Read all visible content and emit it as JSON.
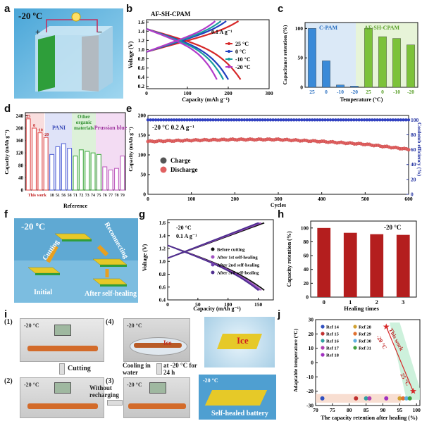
{
  "panel_labels": {
    "a": "a",
    "b": "b",
    "c": "c",
    "d": "d",
    "e": "e",
    "f": "f",
    "g": "g",
    "h": "h",
    "i": "i",
    "j": "j"
  },
  "panel_a": {
    "temperature": "-20 ºC",
    "plus": "+",
    "minus": "−"
  },
  "panel_b": {
    "title": "AF-SH-CPAM",
    "rate": "0.1 A g⁻¹",
    "xlabel": "Capacity (mAh g⁻¹)",
    "ylabel": "Voltage (V)",
    "xticks": [
      "0",
      "100",
      "200",
      "300"
    ],
    "yticks": [
      "0.2",
      "0.4",
      "0.6",
      "0.8",
      "1.0",
      "1.2",
      "1.4",
      "1.6"
    ],
    "legend": [
      {
        "label": "25 °C",
        "color": "#d62728"
      },
      {
        "label": "0 °C",
        "color": "#1f3fbf"
      },
      {
        "label": "-10 °C",
        "color": "#1a9e9e"
      },
      {
        "label": "-20 °C",
        "color": "#b23ac9"
      }
    ]
  },
  "panel_c": {
    "ylabel": "Capacitance retention (%)",
    "xlabel": "Temperature (°C)",
    "group1": "C-PAM",
    "group2": "AF-SH-CPAM",
    "categories": [
      "25",
      "0",
      "-10",
      "-20",
      "25",
      "0",
      "-10",
      "-20"
    ],
    "yticks": [
      "0",
      "50",
      "100"
    ]
  },
  "panel_d": {
    "ylabel": "Capacity (mAh g⁻¹)",
    "xlabel": "Reference",
    "groups": [
      "PANI",
      "Other organic materials",
      "Prussian blue"
    ],
    "annot": [
      "25",
      "0",
      "-10",
      "-20"
    ],
    "xticks": [
      "This work",
      "18",
      "51",
      "56",
      "58",
      "71",
      "72",
      "73",
      "74",
      "75",
      "76",
      "77",
      "78",
      "79"
    ],
    "yticks": [
      "0",
      "40",
      "80",
      "120",
      "160",
      "200",
      "240"
    ]
  },
  "panel_e": {
    "annot": "-20 °C   0.2 A g⁻¹",
    "xlabel": "Cycles",
    "ylabel_left": "Capacity (mAh g⁻¹)",
    "ylabel_right": "Coulomb efficiency (%)",
    "legend": [
      "Charge",
      "Discharge"
    ],
    "xticks": [
      "0",
      "100",
      "200",
      "300",
      "400",
      "500",
      "600"
    ],
    "yticks_left": [
      "0",
      "50",
      "100",
      "150",
      "200"
    ],
    "yticks_right": [
      "0",
      "20",
      "40",
      "60",
      "80",
      "100"
    ]
  },
  "panel_f": {
    "temperature": "-20 ºC",
    "cutting": "Cutting",
    "reconnecting": "Reconnecting",
    "initial": "Initial",
    "after": "After self-healing"
  },
  "panel_g": {
    "annot1": "-20 °C",
    "annot2": "0.1 A g⁻¹",
    "xlabel": "Capacity (mAh g⁻¹)",
    "ylabel": "Voltage (V)",
    "legend": [
      "Before cutting",
      "After 1st self-healing",
      "After 2nd self-healing",
      "After 3rd self-healing"
    ],
    "xticks": [
      "0",
      "50",
      "100",
      "150"
    ],
    "yticks": [
      "0.4",
      "0.6",
      "0.8",
      "1.0",
      "1.2",
      "1.4",
      "1.6"
    ]
  },
  "panel_h": {
    "annot": "-20 °C",
    "xlabel": "Healing times",
    "ylabel": "Capacity retention (%)",
    "xticks": [
      "0",
      "1",
      "2",
      "3"
    ],
    "yticks": [
      "0",
      "20",
      "40",
      "60",
      "80",
      "100"
    ]
  },
  "panel_i": {
    "step1": "(1)",
    "step2": "(2)",
    "step3": "(3)",
    "step4": "(4)",
    "cutting": "Cutting",
    "without": "Without recharging",
    "cooling": "Cooling in water",
    "at": "at -20 °C for 24 h",
    "temp": "-20 °C",
    "ice": "Ice",
    "battery": "Self-healed battery"
  },
  "panel_j": {
    "ylabel": "Adaptable temperature (°C)",
    "xlabel": "The capacity retention after healing (%)",
    "legend": [
      "Ref 14",
      "Ref 15",
      "Ref 16",
      "Ref 17",
      "Ref 18",
      "Ref 28",
      "Ref 29",
      "Ref 30",
      "Ref 31"
    ],
    "this_work": "This work",
    "t1": "-20 °C",
    "t2": "25 °C",
    "xticks": [
      "70",
      "75",
      "80",
      "85",
      "90",
      "95",
      "100"
    ],
    "yticks": [
      "-30",
      "-20",
      "-10",
      "0",
      "10",
      "20",
      "30"
    ]
  },
  "chart_data": [
    {
      "panel": "b",
      "type": "line",
      "title": "AF-SH-CPAM",
      "xlabel": "Capacity (mAh g⁻¹)",
      "ylabel": "Voltage (V)",
      "xlim": [
        0,
        300
      ],
      "ylim": [
        0.15,
        1.65
      ],
      "series": [
        {
          "name": "25 °C",
          "charge_cap_max": 225,
          "discharge_cap_max": 230,
          "color": "#d62728"
        },
        {
          "name": "0 °C",
          "charge_cap_max": 195,
          "discharge_cap_max": 200,
          "color": "#1f3fbf"
        },
        {
          "name": "-10 °C",
          "charge_cap_max": 182,
          "discharge_cap_max": 188,
          "color": "#1a9e9e"
        },
        {
          "name": "-20 °C",
          "charge_cap_max": 168,
          "discharge_cap_max": 172,
          "color": "#b23ac9"
        }
      ]
    },
    {
      "panel": "c",
      "type": "bar",
      "xlabel": "Temperature (°C)",
      "ylabel": "Capacitance retention (%)",
      "ylim": [
        0,
        110
      ],
      "categories": [
        "25",
        "0",
        "-10",
        "-20",
        "25",
        "0",
        "-10",
        "-20"
      ],
      "values": [
        100,
        45,
        4,
        2,
        100,
        86,
        83,
        72
      ],
      "colors": [
        "#3a8ad8",
        "#3a8ad8",
        "#3a8ad8",
        "#3a8ad8",
        "#7cc23a",
        "#7cc23a",
        "#7cc23a",
        "#7cc23a"
      ]
    },
    {
      "panel": "d",
      "type": "bar",
      "xlabel": "Reference",
      "ylabel": "Capacity (mAh g⁻¹)",
      "ylim": [
        0,
        250
      ],
      "categories": [
        "25",
        "0",
        "-10",
        "-20",
        "18",
        "51",
        "56",
        "58",
        "71",
        "72",
        "73",
        "74",
        "75",
        "76",
        "77",
        "78",
        "79"
      ],
      "values": [
        230,
        200,
        185,
        170,
        115,
        140,
        150,
        135,
        110,
        130,
        125,
        120,
        115,
        75,
        65,
        70,
        110
      ],
      "colors": [
        "#e05050",
        "#e05050",
        "#e05050",
        "#e05050",
        "#5a6ad8",
        "#5a6ad8",
        "#5a6ad8",
        "#5a6ad8",
        "#4cae4c",
        "#4cae4c",
        "#4cae4c",
        "#4cae4c",
        "#4cae4c",
        "#c060c0",
        "#c060c0",
        "#c060c0",
        "#c060c0"
      ]
    },
    {
      "panel": "e",
      "type": "scatter",
      "xlabel": "Cycles",
      "xlim": [
        0,
        600
      ],
      "ylim": [
        0,
        200
      ],
      "series": [
        {
          "name": "Charge",
          "x": [
            0,
            100,
            200,
            300,
            400,
            500,
            600
          ],
          "values": [
            135,
            138,
            140,
            140,
            135,
            128,
            115
          ]
        },
        {
          "name": "Discharge",
          "x": [
            0,
            100,
            200,
            300,
            400,
            500,
            600
          ],
          "values": [
            134,
            137,
            139,
            139,
            134,
            127,
            114
          ]
        },
        {
          "name": "Coulomb efficiency",
          "x": [
            0,
            600
          ],
          "values": [
            100,
            100
          ]
        }
      ]
    },
    {
      "panel": "g",
      "type": "line",
      "xlabel": "Capacity (mAh g⁻¹)",
      "ylabel": "Voltage (V)",
      "xlim": [
        0,
        175
      ],
      "ylim": [
        0.4,
        1.65
      ],
      "series": [
        {
          "name": "Before cutting",
          "cap_max": 160
        },
        {
          "name": "After 1st self-healing",
          "cap_max": 155
        },
        {
          "name": "After 2nd self-healing",
          "cap_max": 152
        },
        {
          "name": "After 3rd self-healing",
          "cap_max": 150
        }
      ]
    },
    {
      "panel": "h",
      "type": "bar",
      "xlabel": "Healing times",
      "ylabel": "Capacity retention (%)",
      "ylim": [
        0,
        110
      ],
      "categories": [
        "0",
        "1",
        "2",
        "3"
      ],
      "values": [
        100,
        93,
        91,
        90
      ]
    },
    {
      "panel": "j",
      "type": "scatter",
      "xlabel": "The capacity retention after healing (%)",
      "ylabel": "Adaptable temperature (°C)",
      "xlim": [
        70,
        101
      ],
      "ylim": [
        -30,
        30
      ],
      "series": [
        {
          "name": "Ref 14",
          "x": [
            72
          ],
          "values": [
            -25
          ],
          "color": "#3050c0"
        },
        {
          "name": "Ref 15",
          "x": [
            82
          ],
          "values": [
            -25
          ],
          "color": "#c03030"
        },
        {
          "name": "Ref 16",
          "x": [
            85
          ],
          "values": [
            -25
          ],
          "color": "#30a0a0"
        },
        {
          "name": "Ref 17",
          "x": [
            86
          ],
          "values": [
            -25
          ],
          "color": "#b040b0"
        },
        {
          "name": "Ref 18",
          "x": [
            91
          ],
          "values": [
            -25
          ],
          "color": "#a030c0"
        },
        {
          "name": "Ref 28",
          "x": [
            95
          ],
          "values": [
            -25
          ],
          "color": "#d0a030"
        },
        {
          "name": "Ref 29",
          "x": [
            96
          ],
          "values": [
            -25
          ],
          "color": "#e07030"
        },
        {
          "name": "Ref 30",
          "x": [
            97
          ],
          "values": [
            -25
          ],
          "color": "#60b0e0"
        },
        {
          "name": "Ref 31",
          "x": [
            98
          ],
          "values": [
            -25
          ],
          "color": "#40a040"
        },
        {
          "name": "This work",
          "x": [
            91,
            99
          ],
          "values": [
            25,
            -20
          ],
          "color": "#d62728"
        }
      ]
    }
  ]
}
